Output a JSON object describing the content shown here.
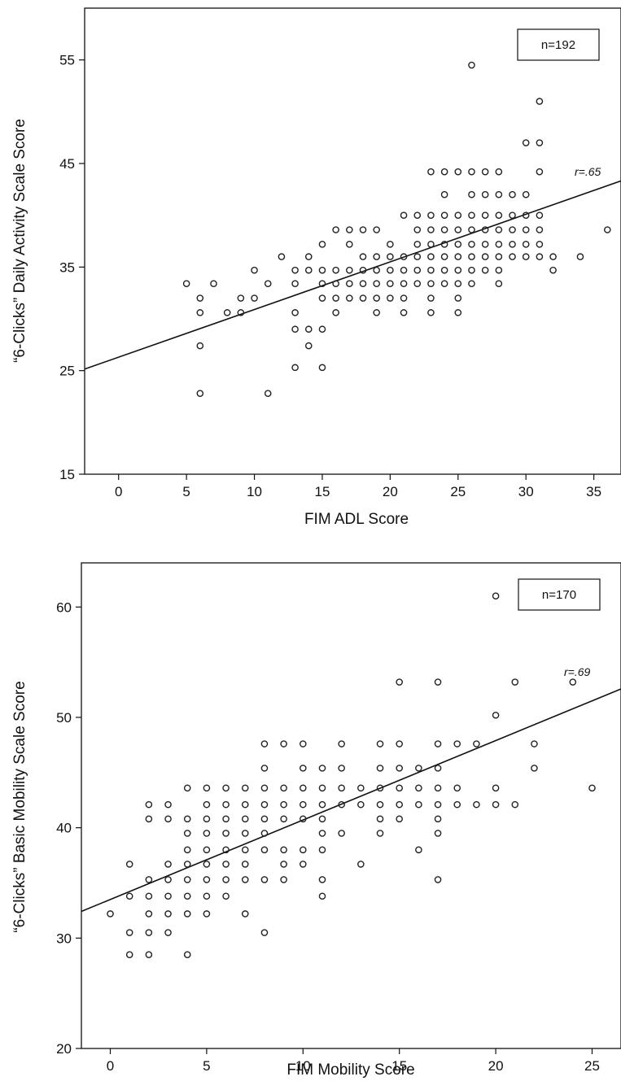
{
  "chart_data": [
    {
      "type": "scatter",
      "title": "",
      "xlabel": "FIM ADL Score",
      "ylabel": "“6-Clicks” Daily Activity Scale Score",
      "xlim": [
        -2.5,
        37
      ],
      "ylim": [
        15,
        60
      ],
      "xticks": [
        0,
        5,
        10,
        15,
        20,
        25,
        30,
        35
      ],
      "yticks": [
        15,
        25,
        35,
        45,
        55
      ],
      "grid": false,
      "legend": {
        "text": "n=192",
        "placement": "top-right"
      },
      "correlation": {
        "label_prefix": "r",
        "label_value": "=.65"
      },
      "regression": {
        "intercept": 26.3,
        "slope": 0.46
      },
      "points": [
        [
          5,
          33.4
        ],
        [
          6,
          32.0
        ],
        [
          6,
          30.6
        ],
        [
          6,
          27.4
        ],
        [
          6,
          22.8
        ],
        [
          7,
          33.4
        ],
        [
          8,
          30.6
        ],
        [
          9,
          30.6
        ],
        [
          9,
          32.0
        ],
        [
          10,
          34.7
        ],
        [
          10,
          32.0
        ],
        [
          11,
          33.4
        ],
        [
          11,
          22.8
        ],
        [
          12,
          36.0
        ],
        [
          13,
          34.7
        ],
        [
          13,
          33.4
        ],
        [
          13,
          30.6
        ],
        [
          13,
          29.0
        ],
        [
          13,
          25.3
        ],
        [
          14,
          36.0
        ],
        [
          14,
          34.7
        ],
        [
          14,
          29.0
        ],
        [
          14,
          27.4
        ],
        [
          15,
          37.2
        ],
        [
          15,
          34.7
        ],
        [
          15,
          33.4
        ],
        [
          15,
          32.0
        ],
        [
          15,
          29.0
        ],
        [
          15,
          25.3
        ],
        [
          16,
          38.6
        ],
        [
          16,
          34.7
        ],
        [
          16,
          33.4
        ],
        [
          16,
          32.0
        ],
        [
          16,
          30.6
        ],
        [
          17,
          38.6
        ],
        [
          17,
          37.2
        ],
        [
          17,
          34.7
        ],
        [
          17,
          33.4
        ],
        [
          17,
          32.0
        ],
        [
          18,
          38.6
        ],
        [
          18,
          36.0
        ],
        [
          18,
          34.7
        ],
        [
          18,
          33.4
        ],
        [
          18,
          32.0
        ],
        [
          19,
          38.6
        ],
        [
          19,
          36.0
        ],
        [
          19,
          34.7
        ],
        [
          19,
          33.4
        ],
        [
          19,
          32.0
        ],
        [
          19,
          30.6
        ],
        [
          20,
          37.2
        ],
        [
          20,
          36.0
        ],
        [
          20,
          34.7
        ],
        [
          20,
          33.4
        ],
        [
          20,
          32.0
        ],
        [
          21,
          40.0
        ],
        [
          21,
          36.0
        ],
        [
          21,
          34.7
        ],
        [
          21,
          33.4
        ],
        [
          21,
          32.0
        ],
        [
          21,
          30.6
        ],
        [
          22,
          40.0
        ],
        [
          22,
          38.6
        ],
        [
          22,
          37.2
        ],
        [
          22,
          36.0
        ],
        [
          22,
          34.7
        ],
        [
          22,
          33.4
        ],
        [
          23,
          44.2
        ],
        [
          23,
          40.0
        ],
        [
          23,
          38.6
        ],
        [
          23,
          37.2
        ],
        [
          23,
          36.0
        ],
        [
          23,
          34.7
        ],
        [
          23,
          33.4
        ],
        [
          23,
          32.0
        ],
        [
          23,
          30.6
        ],
        [
          24,
          44.2
        ],
        [
          24,
          42.0
        ],
        [
          24,
          40.0
        ],
        [
          24,
          38.6
        ],
        [
          24,
          37.2
        ],
        [
          24,
          36.0
        ],
        [
          24,
          34.7
        ],
        [
          24,
          33.4
        ],
        [
          25,
          44.2
        ],
        [
          25,
          40.0
        ],
        [
          25,
          38.6
        ],
        [
          25,
          37.2
        ],
        [
          25,
          36.0
        ],
        [
          25,
          34.7
        ],
        [
          25,
          33.4
        ],
        [
          25,
          32.0
        ],
        [
          25,
          30.6
        ],
        [
          26,
          54.5
        ],
        [
          26,
          44.2
        ],
        [
          26,
          42.0
        ],
        [
          26,
          40.0
        ],
        [
          26,
          38.6
        ],
        [
          26,
          37.2
        ],
        [
          26,
          36.0
        ],
        [
          26,
          34.7
        ],
        [
          26,
          33.4
        ],
        [
          27,
          44.2
        ],
        [
          27,
          42.0
        ],
        [
          27,
          40.0
        ],
        [
          27,
          38.6
        ],
        [
          27,
          37.2
        ],
        [
          27,
          36.0
        ],
        [
          27,
          34.7
        ],
        [
          28,
          44.2
        ],
        [
          28,
          42.0
        ],
        [
          28,
          40.0
        ],
        [
          28,
          38.6
        ],
        [
          28,
          37.2
        ],
        [
          28,
          36.0
        ],
        [
          28,
          34.7
        ],
        [
          28,
          33.4
        ],
        [
          29,
          42.0
        ],
        [
          29,
          40.0
        ],
        [
          29,
          38.6
        ],
        [
          29,
          37.2
        ],
        [
          29,
          36.0
        ],
        [
          30,
          47.0
        ],
        [
          30,
          42.0
        ],
        [
          30,
          40.0
        ],
        [
          30,
          38.6
        ],
        [
          30,
          37.2
        ],
        [
          30,
          36.0
        ],
        [
          31,
          51.0
        ],
        [
          31,
          47.0
        ],
        [
          31,
          44.2
        ],
        [
          31,
          40.0
        ],
        [
          31,
          38.6
        ],
        [
          31,
          37.2
        ],
        [
          31,
          36.0
        ],
        [
          32,
          36.0
        ],
        [
          32,
          34.7
        ],
        [
          34,
          36.0
        ],
        [
          36,
          38.6
        ]
      ]
    },
    {
      "type": "scatter",
      "title": "",
      "xlabel": "FIM Mobility Score",
      "ylabel": "“6-Clicks” Basic Mobility Scale Score",
      "xlim": [
        -1.5,
        26.5
      ],
      "ylim": [
        20,
        64
      ],
      "xticks": [
        0,
        5,
        10,
        15,
        20,
        25
      ],
      "yticks": [
        20,
        30,
        40,
        50,
        60
      ],
      "grid": false,
      "legend": {
        "text": "n=170",
        "placement": "top-right"
      },
      "correlation": {
        "label_prefix": "r",
        "label_value": "=.69"
      },
      "regression": {
        "intercept": 33.5,
        "slope": 0.72
      },
      "points": [
        [
          0,
          32.2
        ],
        [
          1,
          36.7
        ],
        [
          1,
          33.8
        ],
        [
          1,
          30.5
        ],
        [
          1,
          28.5
        ],
        [
          2,
          42.1
        ],
        [
          2,
          40.8
        ],
        [
          2,
          35.3
        ],
        [
          2,
          33.8
        ],
        [
          2,
          32.2
        ],
        [
          2,
          30.5
        ],
        [
          2,
          28.5
        ],
        [
          3,
          42.1
        ],
        [
          3,
          40.8
        ],
        [
          3,
          36.7
        ],
        [
          3,
          35.3
        ],
        [
          3,
          33.8
        ],
        [
          3,
          32.2
        ],
        [
          3,
          30.5
        ],
        [
          4,
          43.6
        ],
        [
          4,
          40.8
        ],
        [
          4,
          39.5
        ],
        [
          4,
          38.0
        ],
        [
          4,
          36.7
        ],
        [
          4,
          35.3
        ],
        [
          4,
          33.8
        ],
        [
          4,
          32.2
        ],
        [
          4,
          28.5
        ],
        [
          5,
          43.6
        ],
        [
          5,
          42.1
        ],
        [
          5,
          40.8
        ],
        [
          5,
          39.5
        ],
        [
          5,
          38.0
        ],
        [
          5,
          36.7
        ],
        [
          5,
          35.3
        ],
        [
          5,
          33.8
        ],
        [
          5,
          32.2
        ],
        [
          6,
          43.6
        ],
        [
          6,
          42.1
        ],
        [
          6,
          40.8
        ],
        [
          6,
          39.5
        ],
        [
          6,
          38.0
        ],
        [
          6,
          36.7
        ],
        [
          6,
          35.3
        ],
        [
          6,
          33.8
        ],
        [
          7,
          43.6
        ],
        [
          7,
          42.1
        ],
        [
          7,
          40.8
        ],
        [
          7,
          39.5
        ],
        [
          7,
          38.0
        ],
        [
          7,
          36.7
        ],
        [
          7,
          35.3
        ],
        [
          7,
          32.2
        ],
        [
          8,
          47.6
        ],
        [
          8,
          45.4
        ],
        [
          8,
          43.6
        ],
        [
          8,
          42.1
        ],
        [
          8,
          40.8
        ],
        [
          8,
          39.5
        ],
        [
          8,
          38.0
        ],
        [
          8,
          35.3
        ],
        [
          8,
          30.5
        ],
        [
          9,
          47.6
        ],
        [
          9,
          43.6
        ],
        [
          9,
          42.1
        ],
        [
          9,
          40.8
        ],
        [
          9,
          38.0
        ],
        [
          9,
          36.7
        ],
        [
          9,
          35.3
        ],
        [
          10,
          47.6
        ],
        [
          10,
          45.4
        ],
        [
          10,
          43.6
        ],
        [
          10,
          42.1
        ],
        [
          10,
          40.8
        ],
        [
          10,
          38.0
        ],
        [
          10,
          36.7
        ],
        [
          11,
          45.4
        ],
        [
          11,
          43.6
        ],
        [
          11,
          42.1
        ],
        [
          11,
          40.8
        ],
        [
          11,
          39.5
        ],
        [
          11,
          38.0
        ],
        [
          11,
          35.3
        ],
        [
          11,
          33.8
        ],
        [
          12,
          47.6
        ],
        [
          12,
          45.4
        ],
        [
          12,
          43.6
        ],
        [
          12,
          42.1
        ],
        [
          12,
          39.5
        ],
        [
          13,
          43.6
        ],
        [
          13,
          42.1
        ],
        [
          13,
          36.7
        ],
        [
          14,
          47.6
        ],
        [
          14,
          45.4
        ],
        [
          14,
          43.6
        ],
        [
          14,
          42.1
        ],
        [
          14,
          40.8
        ],
        [
          14,
          39.5
        ],
        [
          15,
          53.2
        ],
        [
          15,
          47.6
        ],
        [
          15,
          45.4
        ],
        [
          15,
          43.6
        ],
        [
          15,
          42.1
        ],
        [
          15,
          40.8
        ],
        [
          16,
          45.4
        ],
        [
          16,
          43.6
        ],
        [
          16,
          42.1
        ],
        [
          16,
          38.0
        ],
        [
          17,
          53.2
        ],
        [
          17,
          47.6
        ],
        [
          17,
          45.4
        ],
        [
          17,
          43.6
        ],
        [
          17,
          42.1
        ],
        [
          17,
          40.8
        ],
        [
          17,
          39.5
        ],
        [
          17,
          35.3
        ],
        [
          18,
          47.6
        ],
        [
          18,
          43.6
        ],
        [
          18,
          42.1
        ],
        [
          19,
          47.6
        ],
        [
          19,
          42.1
        ],
        [
          20,
          61.0
        ],
        [
          20,
          50.2
        ],
        [
          20,
          43.6
        ],
        [
          20,
          42.1
        ],
        [
          21,
          53.2
        ],
        [
          21,
          42.1
        ],
        [
          22,
          47.6
        ],
        [
          22,
          45.4
        ],
        [
          24,
          53.2
        ],
        [
          25,
          43.6
        ]
      ]
    }
  ]
}
